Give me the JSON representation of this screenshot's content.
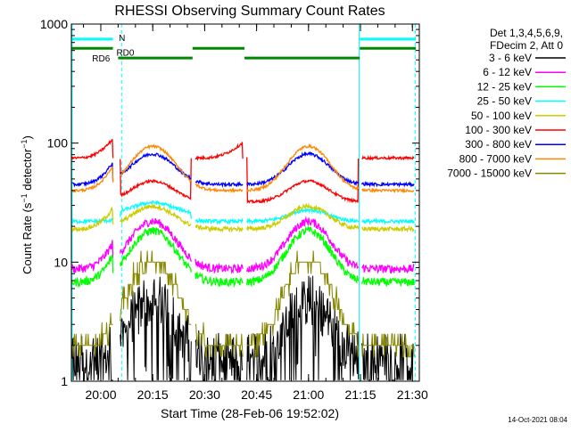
{
  "chart_data": {
    "type": "line",
    "title": "RHESSI Observing Summary Count Rates",
    "xlabel": "Start Time (28-Feb-06 19:52:02)",
    "ylabel_main": "Count Rate (s",
    "ylabel_sup1": "−1",
    "ylabel_mid": " detector",
    "ylabel_sup2": "−1",
    "ylabel_end": ")",
    "footer": "14-Oct-2021 08:04",
    "y_scale": "log",
    "ylim": [
      1,
      1000
    ],
    "xlim_minutes": [
      -0.5,
      100
    ],
    "x_ticks": [
      {
        "t": 8,
        "label": "20:00"
      },
      {
        "t": 23,
        "label": "20:15"
      },
      {
        "t": 38,
        "label": "20:30"
      },
      {
        "t": 53,
        "label": "20:45"
      },
      {
        "t": 68,
        "label": "21:00"
      },
      {
        "t": 83,
        "label": "21:15"
      },
      {
        "t": 98,
        "label": "21:30"
      }
    ],
    "y_ticks": [
      {
        "v": 1,
        "label": "1"
      },
      {
        "v": 10,
        "label": "10"
      },
      {
        "v": 100,
        "label": "100"
      },
      {
        "v": 1000,
        "label": "1000"
      }
    ],
    "legend": {
      "header": [
        "Det 1,3,4,5,6,9,",
        "FDecim 2, Att 0"
      ],
      "position": "right"
    },
    "series": [
      {
        "name": "3 - 6 keV",
        "color": "#000000"
      },
      {
        "name": "6 - 12 keV",
        "color": "#ff00ff"
      },
      {
        "name": "12 - 25 keV",
        "color": "#00ff00"
      },
      {
        "name": "25 - 50 keV",
        "color": "#00ffff"
      },
      {
        "name": "50 - 100 keV",
        "color": "#cccc00"
      },
      {
        "name": "100 - 300 keV",
        "color": "#ff0000"
      },
      {
        "name": "300 - 800 keV",
        "color": "#0000ff"
      },
      {
        "name": "800 - 7000 keV",
        "color": "#ff8800"
      },
      {
        "name": "7000 - 15000 keV",
        "color": "#888800"
      }
    ],
    "flags": [
      {
        "label": "N",
        "color": "#00ffff",
        "label_t": 13.2,
        "y_frac": 0.958
      },
      {
        "label": "RD0",
        "color": "#008800",
        "label_t": 12.5,
        "y_frac": 0.932
      },
      {
        "label": "RD6",
        "color": "#008800",
        "label_t": 5.5,
        "y_frac": 0.905
      }
    ],
    "flag_N_segments": [
      [
        -0.5,
        11.5
      ],
      [
        82.8,
        99
      ]
    ],
    "flag_RD0_segments": [
      [
        -0.5,
        11.5
      ],
      [
        34.5,
        49.5
      ],
      [
        82.8,
        99
      ]
    ],
    "flag_RD6_segments": [
      [
        13.0,
        34.5
      ],
      [
        49.5,
        82.8
      ]
    ],
    "night_boundaries_solid": [
      -0.3,
      82.6
    ],
    "saa_boundaries_dashed": [
      14.0,
      98.8
    ],
    "colors": {
      "flag_N": "#00ffff",
      "flag_RD": "#008800",
      "boundary": "#00ffff"
    }
  }
}
